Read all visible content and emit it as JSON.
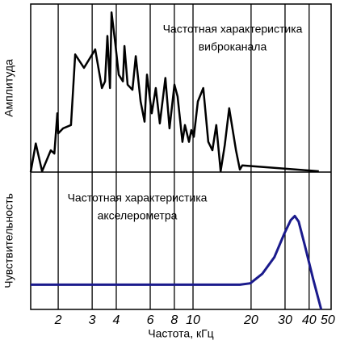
{
  "chart_data": [
    {
      "type": "line",
      "ylabel": "Амплитуда",
      "annotation": [
        "Частотная характеристика",
        "виброканала"
      ],
      "log_x": true,
      "xlim": [
        1.44,
        52
      ],
      "xticks": [
        2,
        3,
        4,
        6,
        8,
        10,
        20,
        30,
        40,
        50
      ],
      "ylim": [
        0,
        100
      ],
      "grid": true,
      "series": [
        {
          "color": "#000000",
          "x": [
            1.44,
            1.53,
            1.65,
            1.83,
            1.91,
            1.98,
            2.0,
            2.12,
            2.33,
            2.45,
            2.72,
            3.11,
            3.37,
            3.5,
            3.6,
            3.71,
            3.78,
            3.96,
            4.12,
            4.33,
            4.41,
            4.58,
            4.85,
            5.05,
            5.35,
            5.61,
            5.77,
            6.11,
            6.41,
            6.73,
            7.19,
            7.55,
            8.01,
            8.32,
            8.81,
            9.08,
            9.53,
            9.8,
            10.1,
            10.6,
            11.3,
            12.0,
            12.6,
            13.2,
            13.9,
            14.6,
            15.4,
            16.7,
            17.5,
            18.0,
            44.9
          ],
          "values": [
            0,
            17,
            0.5,
            13,
            11,
            35,
            23,
            26,
            28,
            70,
            62,
            73,
            50,
            54,
            81,
            50,
            95,
            76,
            58,
            54,
            75,
            52,
            49,
            69,
            42,
            30,
            58,
            35,
            50,
            29,
            56,
            26,
            52,
            45,
            18,
            28,
            18,
            25,
            21,
            42,
            50,
            18,
            13,
            28,
            0.5,
            16,
            38,
            13,
            1.5,
            4,
            0.5
          ]
        }
      ]
    },
    {
      "type": "line",
      "ylabel": "Чувствительность",
      "annotation": [
        "Частотная характеристика",
        "акселерометра"
      ],
      "xlabel": "Частота, кГц",
      "log_x": true,
      "xlim": [
        1.44,
        52
      ],
      "xticks": [
        2,
        3,
        4,
        6,
        8,
        10,
        20,
        30,
        40,
        50
      ],
      "ylim": [
        0,
        100
      ],
      "grid": true,
      "series": [
        {
          "color": "#1a1a8c",
          "x": [
            1.44,
            17.5,
            19.8,
            22.9,
            26.4,
            29.7,
            32.1,
            33.7,
            35.3,
            38.1,
            42.0,
            46.2
          ],
          "values": [
            18,
            18,
            19,
            26,
            38,
            55,
            65,
            68,
            64,
            46,
            22,
            0
          ]
        }
      ]
    }
  ]
}
